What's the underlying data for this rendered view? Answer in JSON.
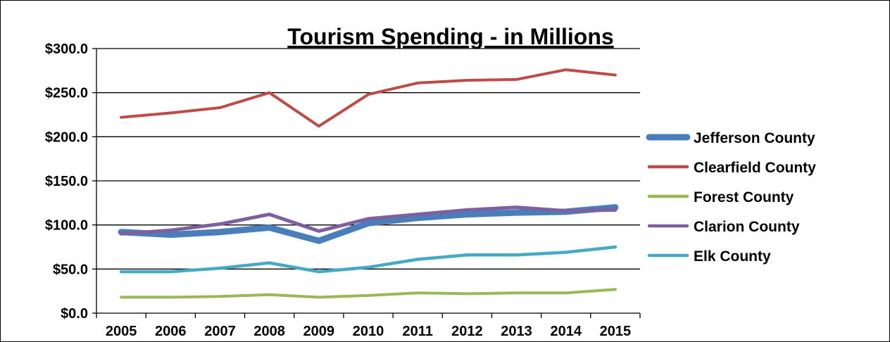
{
  "chart_data": {
    "type": "line",
    "title": "Tourism Spending - in Millions",
    "xlabel": "",
    "ylabel": "",
    "ylim": [
      0,
      300
    ],
    "y_ticks": [
      "$0.0",
      "$50.0",
      "$100.0",
      "$150.0",
      "$200.0",
      "$250.0",
      "$300.0"
    ],
    "y_tick_values": [
      0,
      50,
      100,
      150,
      200,
      250,
      300
    ],
    "categories": [
      "2005",
      "2006",
      "2007",
      "2008",
      "2009",
      "2010",
      "2011",
      "2012",
      "2013",
      "2014",
      "2015"
    ],
    "grid": true,
    "legend_position": "right",
    "series": [
      {
        "name": "Jefferson County",
        "color": "#4a7ebb",
        "values": [
          92,
          89,
          92,
          97,
          82,
          102,
          108,
          112,
          114,
          115,
          120
        ]
      },
      {
        "name": "Clearfield County",
        "color": "#be4b48",
        "values": [
          222,
          227,
          233,
          250,
          212,
          248,
          261,
          264,
          265,
          276,
          270
        ]
      },
      {
        "name": "Forest County",
        "color": "#98b954",
        "values": [
          18,
          18,
          19,
          21,
          18,
          20,
          23,
          22,
          23,
          23,
          27
        ]
      },
      {
        "name": "Clarion County",
        "color": "#7d60a0",
        "values": [
          90,
          94,
          101,
          112,
          93,
          107,
          112,
          117,
          120,
          116,
          117
        ]
      },
      {
        "name": "Elk County",
        "color": "#46aac5",
        "values": [
          47,
          47,
          51,
          57,
          47,
          52,
          61,
          66,
          66,
          69,
          75
        ]
      }
    ]
  }
}
